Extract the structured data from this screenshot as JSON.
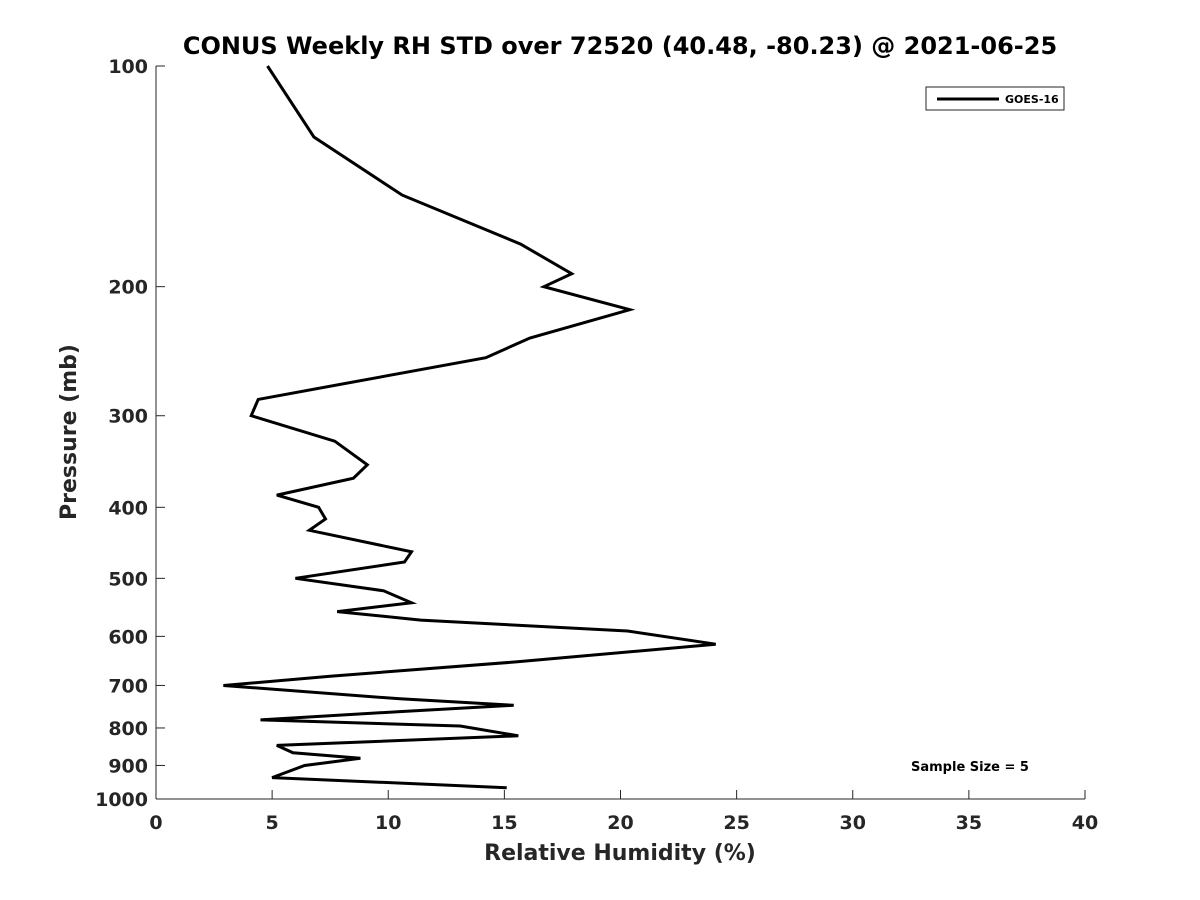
{
  "chart_data": {
    "type": "line",
    "title": "CONUS Weekly RH STD over 72520 (40.48, -80.23) @ 2021-06-25",
    "xlabel": "Relative Humidity (%)",
    "ylabel": "Pressure (mb)",
    "xlim": [
      0,
      40
    ],
    "ylim": [
      100,
      1000
    ],
    "y_scale": "log",
    "y_reversed": true,
    "grid": false,
    "x_ticks": [
      "0",
      "5",
      "10",
      "15",
      "20",
      "25",
      "30",
      "35",
      "40"
    ],
    "y_ticks": [
      "100",
      "200",
      "300",
      "400",
      "500",
      "600",
      "700",
      "800",
      "900",
      "1000"
    ],
    "legend": {
      "position": "top-right",
      "entries": [
        "GOES-16"
      ]
    },
    "annotations": [
      "Sample Size = 5"
    ],
    "series": [
      {
        "name": "GOES-16",
        "color": "#000000",
        "points": [
          [
            4.8,
            100
          ],
          [
            6.8,
            125
          ],
          [
            10.6,
            150
          ],
          [
            15.7,
            175
          ],
          [
            17.9,
            192
          ],
          [
            16.7,
            200
          ],
          [
            20.4,
            215
          ],
          [
            16.1,
            235
          ],
          [
            14.2,
            250
          ],
          [
            4.4,
            285
          ],
          [
            4.1,
            300
          ],
          [
            7.7,
            325
          ],
          [
            9.1,
            350
          ],
          [
            8.5,
            365
          ],
          [
            5.2,
            385
          ],
          [
            7.0,
            400
          ],
          [
            7.3,
            415
          ],
          [
            6.6,
            430
          ],
          [
            11.0,
            460
          ],
          [
            10.7,
            475
          ],
          [
            6.0,
            500
          ],
          [
            9.8,
            520
          ],
          [
            11.0,
            540
          ],
          [
            7.8,
            555
          ],
          [
            11.4,
            570
          ],
          [
            20.3,
            590
          ],
          [
            24.1,
            615
          ],
          [
            15.5,
            650
          ],
          [
            7.5,
            680
          ],
          [
            2.9,
            700
          ],
          [
            10.5,
            730
          ],
          [
            15.4,
            745
          ],
          [
            10.5,
            760
          ],
          [
            4.5,
            780
          ],
          [
            13.1,
            795
          ],
          [
            15.6,
            820
          ],
          [
            5.2,
            845
          ],
          [
            5.9,
            865
          ],
          [
            8.8,
            880
          ],
          [
            6.4,
            900
          ],
          [
            5.0,
            935
          ],
          [
            15.1,
            965
          ]
        ]
      }
    ]
  }
}
